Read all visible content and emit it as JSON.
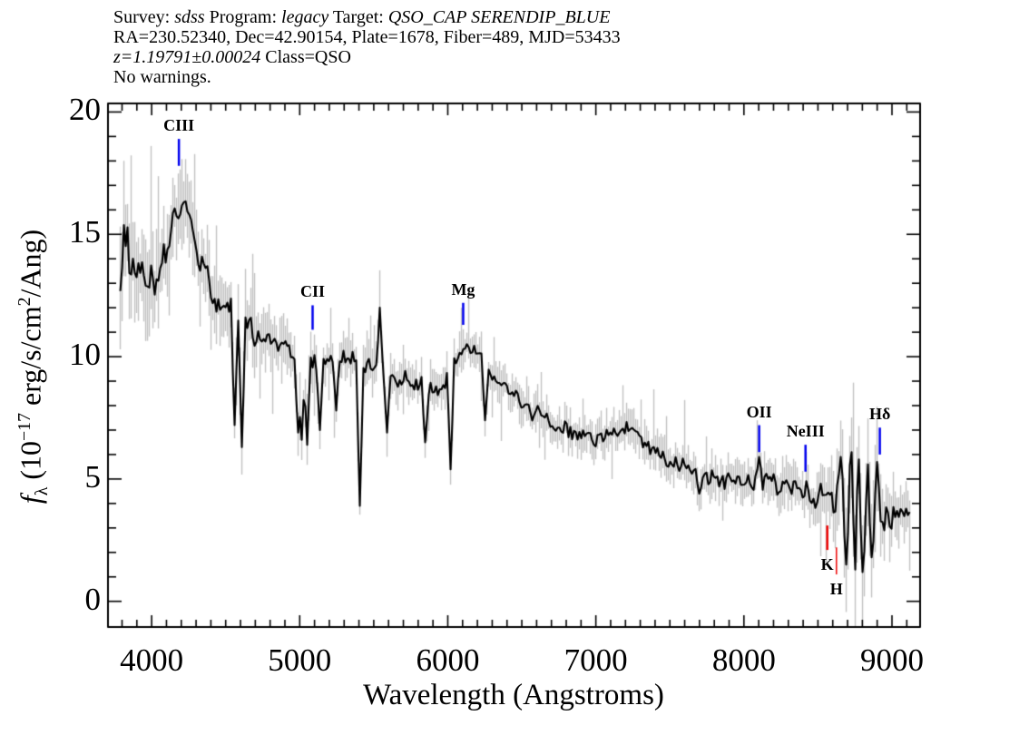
{
  "header": {
    "lines": [
      {
        "runs": [
          {
            "t": "Survey: "
          },
          {
            "t": "sdss",
            "i": true
          },
          {
            "t": " Program: "
          },
          {
            "t": "legacy",
            "i": true
          },
          {
            "t": " Target: "
          },
          {
            "t": "QSO_CAP SERENDIP_BLUE",
            "i": true
          }
        ]
      },
      {
        "runs": [
          {
            "t": "RA=230.52340, Dec=42.90154, Plate=1678, Fiber=489, MJD=53433"
          }
        ]
      },
      {
        "runs": [
          {
            "t": "z=1.19791±0.00024",
            "i": true
          },
          {
            "t": " Class=QSO"
          }
        ]
      },
      {
        "runs": [
          {
            "t": "No warnings."
          }
        ]
      }
    ]
  },
  "chart_data": {
    "type": "line",
    "xlabel": "Wavelength (Angstroms)",
    "ylabel_runs": [
      {
        "t": "f",
        "i": true
      },
      {
        "t": "λ",
        "sub": true
      },
      {
        "t": " (10"
      },
      {
        "t": "−17",
        "sup": true
      },
      {
        "t": " erg/s/cm",
        "": ""
      },
      {
        "t": "2",
        "sup": true
      },
      {
        "t": "/Ang)"
      }
    ],
    "xlim": [
      3705,
      9190
    ],
    "ylim": [
      -1.05,
      20.35
    ],
    "x_major_ticks": [
      4000,
      5000,
      6000,
      7000,
      8000,
      9000
    ],
    "x_minor_step": 100,
    "y_major_ticks": [
      0,
      5,
      10,
      15,
      20
    ],
    "y_minor_step": 1,
    "grid": false,
    "spectrum_color": "#000000",
    "error_band_color": "#c2c2c2",
    "data_range": [
      3788,
      9125
    ],
    "continuum": [
      [
        3788,
        14.0
      ],
      [
        3800,
        14.6
      ],
      [
        3830,
        14.2
      ],
      [
        3860,
        13.6
      ],
      [
        3885,
        14.1
      ],
      [
        3920,
        13.7
      ],
      [
        3960,
        13.3
      ],
      [
        4000,
        13.2
      ],
      [
        4040,
        13.4
      ],
      [
        4080,
        13.9
      ],
      [
        4120,
        14.7
      ],
      [
        4160,
        15.8
      ],
      [
        4195,
        16.5
      ],
      [
        4230,
        15.7
      ],
      [
        4270,
        14.7
      ],
      [
        4330,
        13.5
      ],
      [
        4400,
        12.7
      ],
      [
        4480,
        12.1
      ],
      [
        4560,
        11.8
      ],
      [
        4650,
        11.2
      ],
      [
        4750,
        10.7
      ],
      [
        4850,
        10.4
      ],
      [
        4950,
        10.1
      ],
      [
        5050,
        9.9
      ],
      [
        5150,
        9.85
      ],
      [
        5250,
        9.9
      ],
      [
        5350,
        9.8
      ],
      [
        5450,
        9.7
      ],
      [
        5550,
        9.5
      ],
      [
        5650,
        9.2
      ],
      [
        5750,
        8.95
      ],
      [
        5850,
        8.75
      ],
      [
        5950,
        8.8
      ],
      [
        6020,
        9.3
      ],
      [
        6070,
        10.0
      ],
      [
        6110,
        10.5
      ],
      [
        6160,
        10.4
      ],
      [
        6210,
        10.1
      ],
      [
        6260,
        9.6
      ],
      [
        6320,
        9.0
      ],
      [
        6400,
        8.6
      ],
      [
        6500,
        8.2
      ],
      [
        6600,
        7.7
      ],
      [
        6700,
        7.3
      ],
      [
        6800,
        7.0
      ],
      [
        6900,
        6.85
      ],
      [
        7000,
        6.7
      ],
      [
        7100,
        6.8
      ],
      [
        7200,
        7.15
      ],
      [
        7280,
        6.9
      ],
      [
        7360,
        6.3
      ],
      [
        7450,
        5.9
      ],
      [
        7550,
        5.6
      ],
      [
        7650,
        5.3
      ],
      [
        7750,
        5.1
      ],
      [
        7850,
        5.0
      ],
      [
        7950,
        4.9
      ],
      [
        8050,
        4.8
      ],
      [
        8150,
        4.9
      ],
      [
        8250,
        4.7
      ],
      [
        8350,
        4.6
      ],
      [
        8450,
        4.45
      ],
      [
        8550,
        4.25
      ],
      [
        8650,
        4.0
      ],
      [
        8750,
        3.6
      ],
      [
        8850,
        3.7
      ],
      [
        8950,
        3.6
      ],
      [
        9050,
        3.5
      ],
      [
        9125,
        3.6
      ]
    ],
    "noise_halfwidth": [
      [
        3788,
        1.6
      ],
      [
        3900,
        1.3
      ],
      [
        4100,
        1.1
      ],
      [
        4300,
        0.95
      ],
      [
        4600,
        0.75
      ],
      [
        4900,
        0.6
      ],
      [
        5200,
        0.5
      ],
      [
        5600,
        0.45
      ],
      [
        6000,
        0.45
      ],
      [
        6400,
        0.4
      ],
      [
        6800,
        0.4
      ],
      [
        7200,
        0.45
      ],
      [
        7600,
        0.45
      ],
      [
        8000,
        0.45
      ],
      [
        8300,
        0.5
      ],
      [
        8550,
        0.65
      ],
      [
        8650,
        1.3
      ],
      [
        8750,
        1.8
      ],
      [
        8850,
        1.7
      ],
      [
        8930,
        1.0
      ],
      [
        9000,
        0.6
      ],
      [
        9125,
        0.55
      ]
    ],
    "band_halfwidth": [
      [
        3788,
        2.3
      ],
      [
        3900,
        2.0
      ],
      [
        4100,
        1.7
      ],
      [
        4300,
        1.5
      ],
      [
        4600,
        1.25
      ],
      [
        4900,
        1.05
      ],
      [
        5200,
        0.9
      ],
      [
        5600,
        0.85
      ],
      [
        6000,
        0.8
      ],
      [
        6400,
        0.75
      ],
      [
        6800,
        0.75
      ],
      [
        7200,
        0.8
      ],
      [
        7600,
        0.85
      ],
      [
        8000,
        0.85
      ],
      [
        8300,
        0.95
      ],
      [
        8550,
        1.15
      ],
      [
        8650,
        1.9
      ],
      [
        8750,
        2.6
      ],
      [
        8850,
        2.5
      ],
      [
        8930,
        1.6
      ],
      [
        9000,
        1.15
      ],
      [
        9125,
        1.0
      ]
    ],
    "spikes": [
      [
        4565,
        7.2
      ],
      [
        4614,
        6.3
      ],
      [
        4985,
        6.9
      ],
      [
        5018,
        6.6
      ],
      [
        5045,
        6.4
      ],
      [
        5140,
        7.0
      ],
      [
        5245,
        7.8
      ],
      [
        5411,
        3.9
      ],
      [
        5540,
        12.0
      ],
      [
        5595,
        6.9
      ],
      [
        5852,
        6.5
      ],
      [
        6018,
        5.4
      ],
      [
        6250,
        7.4
      ],
      [
        7692,
        4.4
      ],
      [
        8105,
        5.9
      ],
      [
        8655,
        5.9
      ],
      [
        8690,
        1.5
      ],
      [
        8725,
        6.1
      ],
      [
        8748,
        1.3
      ],
      [
        8778,
        5.8
      ],
      [
        8806,
        1.2
      ],
      [
        8838,
        5.6
      ],
      [
        8868,
        1.8
      ],
      [
        8897,
        5.7
      ]
    ],
    "lines": [
      {
        "label": "CIII",
        "x": 4184,
        "color": "#0000ee",
        "tick": [
          17.8,
          18.9
        ],
        "side": "above",
        "w": 2.5
      },
      {
        "label": "CII",
        "x": 5087,
        "color": "#0000ee",
        "tick": [
          11.1,
          12.1
        ],
        "side": "above",
        "w": 2.5
      },
      {
        "label": "Mg",
        "x": 6104,
        "color": "#0000ee",
        "tick": [
          11.3,
          12.2
        ],
        "side": "above",
        "w": 2.5
      },
      {
        "label": "OII",
        "x": 8103,
        "color": "#0000ee",
        "tick": [
          6.1,
          7.2
        ],
        "side": "above",
        "w": 2.5
      },
      {
        "label": "NeIII",
        "x": 8416,
        "color": "#0000ee",
        "tick": [
          5.3,
          6.4
        ],
        "side": "above",
        "w": 2.5
      },
      {
        "label": "Hδ",
        "x": 8918,
        "color": "#0000ee",
        "tick": [
          6.0,
          7.1
        ],
        "side": "above",
        "w": 2.5
      },
      {
        "label": "K",
        "x": 8563,
        "color": "#ee0000",
        "tick": [
          2.1,
          3.1
        ],
        "side": "below",
        "w": 2.5
      },
      {
        "label": "H",
        "x": 8625,
        "color": "#ee0000",
        "tick": [
          1.1,
          2.2
        ],
        "side": "below",
        "w": 1.5
      }
    ]
  }
}
